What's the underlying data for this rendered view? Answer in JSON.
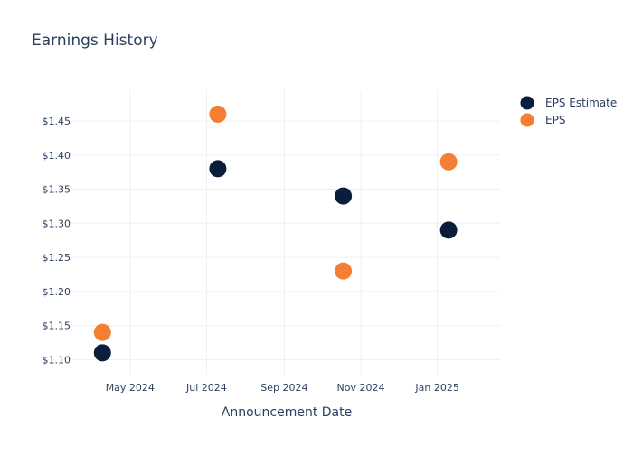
{
  "chart_data": {
    "type": "scatter",
    "title": "Earnings History",
    "xlabel": "Announcement Date",
    "ylabel": "",
    "x_type": "date",
    "xlim": [
      "2024-03-16",
      "2025-02-20"
    ],
    "ylim": [
      1.078,
      1.495
    ],
    "x_ticks": [
      {
        "value": "2024-05-01",
        "label": "May 2024"
      },
      {
        "value": "2024-07-01",
        "label": "Jul 2024"
      },
      {
        "value": "2024-09-01",
        "label": "Sep 2024"
      },
      {
        "value": "2024-11-01",
        "label": "Nov 2024"
      },
      {
        "value": "2025-01-01",
        "label": "Jan 2025"
      }
    ],
    "y_ticks": [
      {
        "value": 1.1,
        "label": "$1.10"
      },
      {
        "value": 1.15,
        "label": "$1.15"
      },
      {
        "value": 1.2,
        "label": "$1.20"
      },
      {
        "value": 1.25,
        "label": "$1.25"
      },
      {
        "value": 1.3,
        "label": "$1.30"
      },
      {
        "value": 1.35,
        "label": "$1.35"
      },
      {
        "value": 1.4,
        "label": "$1.40"
      },
      {
        "value": 1.45,
        "label": "$1.45"
      }
    ],
    "grid": true,
    "legend_position": "top-right",
    "series": [
      {
        "name": "EPS Estimate",
        "color": "#0b1d3d",
        "points": [
          {
            "x": "2024-04-09",
            "y": 1.11
          },
          {
            "x": "2024-07-10",
            "y": 1.38
          },
          {
            "x": "2024-10-18",
            "y": 1.34
          },
          {
            "x": "2025-01-10",
            "y": 1.29
          }
        ]
      },
      {
        "name": "EPS",
        "color": "#f47f34",
        "points": [
          {
            "x": "2024-04-09",
            "y": 1.14
          },
          {
            "x": "2024-07-10",
            "y": 1.46
          },
          {
            "x": "2024-10-18",
            "y": 1.23
          },
          {
            "x": "2025-01-10",
            "y": 1.39
          }
        ]
      }
    ]
  }
}
